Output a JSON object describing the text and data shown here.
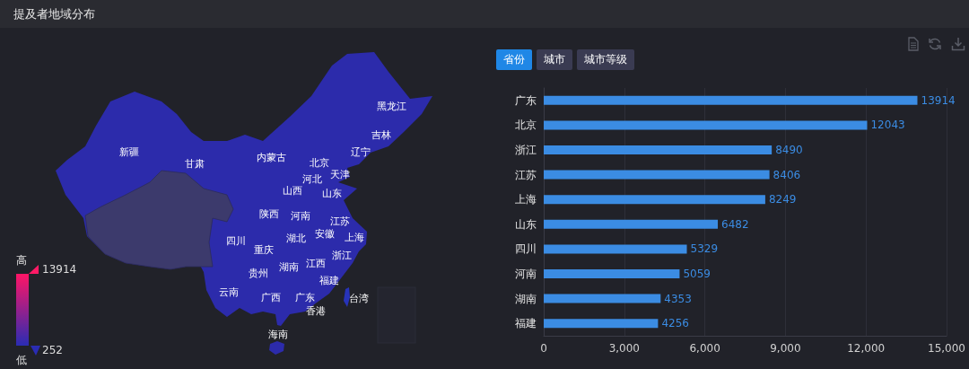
{
  "chart_data": [
    {
      "type": "other",
      "title": "提及者地域分布",
      "categories": [
        "黑龙江",
        "吉林",
        "新疆",
        "辽宁",
        "内蒙古",
        "北京",
        "甘肃",
        "天津",
        "河北",
        "山西",
        "山东",
        "陕西",
        "河南",
        "江苏",
        "安徽",
        "上海",
        "湖北",
        "四川",
        "重庆",
        "浙江",
        "江西",
        "湖南",
        "贵州",
        "福建",
        "云南",
        "广西",
        "广东",
        "台湾",
        "香港",
        "海南"
      ],
      "annotations": [
        "高",
        "13914",
        "252",
        "低"
      ]
    },
    {
      "type": "bar",
      "orientation": "horizontal",
      "categories": [
        "广东",
        "北京",
        "浙江",
        "江苏",
        "上海",
        "山东",
        "四川",
        "河南",
        "湖南",
        "福建"
      ],
      "values": [
        13914,
        12043,
        8490,
        8406,
        8249,
        6482,
        5329,
        5059,
        4353,
        4256
      ],
      "color": "#3b8ce3",
      "xlim": [
        0,
        15000
      ],
      "xticks": [
        0,
        {
          "value": 3000,
          "label": "3,000"
        },
        {
          "value": 6000,
          "label": "6,000"
        },
        {
          "value": 9000,
          "label": "9,000"
        },
        {
          "value": 12000,
          "label": "12,000"
        },
        {
          "value": 15000,
          "label": "15,000"
        }
      ],
      "grid": "x",
      "data_labels": true,
      "annotations": [
        "省份",
        "城市",
        "城市等级"
      ]
    }
  ]
}
